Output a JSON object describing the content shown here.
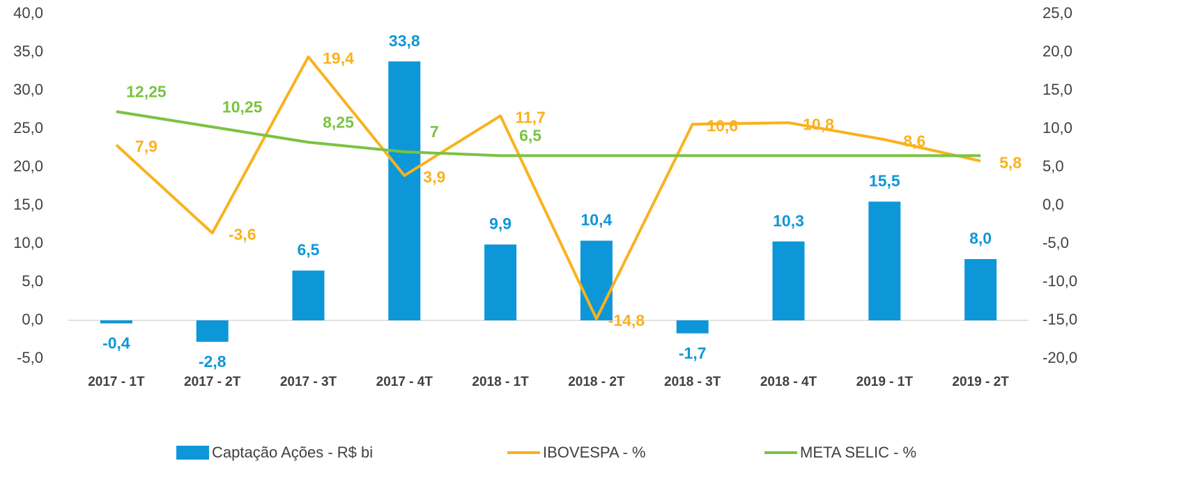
{
  "chart_data": {
    "type": "bar_line",
    "categories": [
      "2017 - 1T",
      "2017 - 2T",
      "2017 - 3T",
      "2017 - 4T",
      "2018 - 1T",
      "2018 - 2T",
      "2018 - 3T",
      "2018 - 4T",
      "2019 - 1T",
      "2019 - 2T"
    ],
    "series": [
      {
        "name": "Captação Ações - R$ bi",
        "type": "bar",
        "color": "#0e97d8",
        "values": [
          -0.4,
          -2.8,
          6.5,
          33.8,
          9.9,
          10.4,
          -1.7,
          10.3,
          15.5,
          8.0
        ],
        "value_labels": [
          "-0,4",
          "-2,8",
          "6,5",
          "33,8",
          "9,9",
          "10,4",
          "-1,7",
          "10,3",
          "15,5",
          "8,0"
        ]
      },
      {
        "name": "IBOVESPA - %",
        "type": "line",
        "axis": "y2",
        "color": "#f9b21d",
        "values": [
          7.9,
          -3.6,
          19.4,
          3.9,
          11.7,
          -14.8,
          10.6,
          10.8,
          8.6,
          5.8
        ],
        "value_labels": [
          "7,9",
          "-3,6",
          "19,4",
          "3,9",
          "11,7",
          "-14,8",
          "10,6",
          "10,8",
          "8,6",
          "5,8"
        ]
      },
      {
        "name": "META SELIC - %",
        "type": "line",
        "axis": "y2",
        "color": "#7cc242",
        "values": [
          12.25,
          10.25,
          8.25,
          7,
          6.5,
          6.5,
          6.5,
          6.5,
          6.5,
          6.5
        ],
        "value_labels": [
          "12,25",
          "10,25",
          "8,25",
          "7",
          "6,5",
          null,
          null,
          null,
          null,
          null
        ]
      }
    ],
    "ylim": [
      -5,
      40
    ],
    "yticks": [
      {
        "value": -5,
        "label": "-5,0"
      },
      {
        "value": 0,
        "label": "0,0"
      },
      {
        "value": 5,
        "label": "5,0"
      },
      {
        "value": 10,
        "label": "10,0"
      },
      {
        "value": 15,
        "label": "15,0"
      },
      {
        "value": 20,
        "label": "20,0"
      },
      {
        "value": 25,
        "label": "25,0"
      },
      {
        "value": 30,
        "label": "30,0"
      },
      {
        "value": 35,
        "label": "35,0"
      },
      {
        "value": 40,
        "label": "40,0"
      }
    ],
    "y2lim": [
      -20,
      25
    ],
    "y2ticks": [
      {
        "value": -20,
        "label": "-20,0"
      },
      {
        "value": -15,
        "label": "-15,0"
      },
      {
        "value": -10,
        "label": "-10,0"
      },
      {
        "value": -5,
        "label": "-5,0"
      },
      {
        "value": 0,
        "label": "0,0"
      },
      {
        "value": 5,
        "label": "5,0"
      },
      {
        "value": 10,
        "label": "10,0"
      },
      {
        "value": 15,
        "label": "15,0"
      },
      {
        "value": 20,
        "label": "20,0"
      },
      {
        "value": 25,
        "label": "25,0"
      }
    ],
    "legend": "bottom",
    "grid": false
  }
}
